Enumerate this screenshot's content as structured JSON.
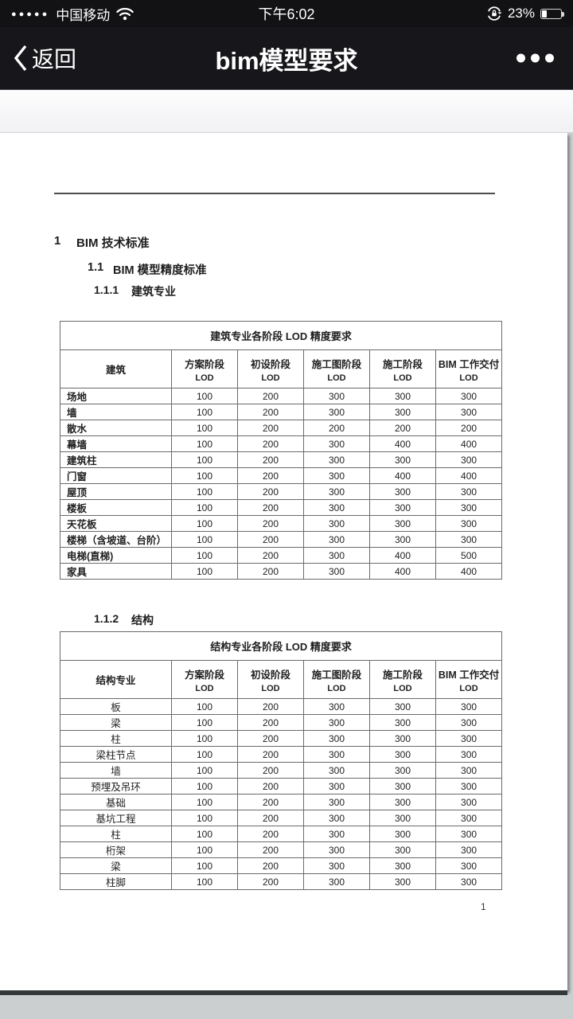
{
  "status_bar": {
    "signal_dots": "●●●●●",
    "carrier": "中国移动",
    "time": "下午6:02",
    "battery_percent": "23%"
  },
  "nav_bar": {
    "back_label": "返回",
    "title": "bim模型要求"
  },
  "page": {
    "sections": [
      {
        "num": "1",
        "text": "BIM 技术标准"
      },
      {
        "num": "1.1",
        "text": "BIM 模型精度标准"
      },
      {
        "num": "1.1.1",
        "text": "建筑专业"
      },
      {
        "num": "1.1.2",
        "text": "结构"
      }
    ],
    "page_number": "1",
    "tables": [
      {
        "title": "建筑专业各阶段 LOD 精度要求",
        "columns": [
          {
            "label": "建筑",
            "sub": ""
          },
          {
            "label": "方案阶段",
            "sub": "LOD"
          },
          {
            "label": "初设阶段",
            "sub": "LOD"
          },
          {
            "label": "施工图阶段",
            "sub": "LOD"
          },
          {
            "label": "施工阶段",
            "sub": "LOD"
          },
          {
            "label": "BIM 工作交付",
            "sub": "LOD"
          }
        ],
        "rows": [
          [
            "场地",
            "100",
            "200",
            "300",
            "300",
            "300"
          ],
          [
            "墙",
            "100",
            "200",
            "300",
            "300",
            "300"
          ],
          [
            "散水",
            "100",
            "200",
            "200",
            "200",
            "200"
          ],
          [
            "幕墙",
            "100",
            "200",
            "300",
            "400",
            "400"
          ],
          [
            "建筑柱",
            "100",
            "200",
            "300",
            "300",
            "300"
          ],
          [
            "门窗",
            "100",
            "200",
            "300",
            "400",
            "400"
          ],
          [
            "屋顶",
            "100",
            "200",
            "300",
            "300",
            "300"
          ],
          [
            "楼板",
            "100",
            "200",
            "300",
            "300",
            "300"
          ],
          [
            "天花板",
            "100",
            "200",
            "300",
            "300",
            "300"
          ],
          [
            "楼梯（含坡道、台阶）",
            "100",
            "200",
            "300",
            "300",
            "300"
          ],
          [
            "电梯(直梯)",
            "100",
            "200",
            "300",
            "400",
            "500"
          ],
          [
            "家具",
            "100",
            "200",
            "300",
            "400",
            "400"
          ]
        ]
      },
      {
        "title": "结构专业各阶段 LOD 精度要求",
        "columns": [
          {
            "label": "结构专业",
            "sub": ""
          },
          {
            "label": "方案阶段",
            "sub": "LOD"
          },
          {
            "label": "初设阶段",
            "sub": "LOD"
          },
          {
            "label": "施工图阶段",
            "sub": "LOD"
          },
          {
            "label": "施工阶段",
            "sub": "LOD"
          },
          {
            "label": "BIM 工作交付",
            "sub": "LOD"
          }
        ],
        "rows": [
          [
            "板",
            "100",
            "200",
            "300",
            "300",
            "300"
          ],
          [
            "梁",
            "100",
            "200",
            "300",
            "300",
            "300"
          ],
          [
            "柱",
            "100",
            "200",
            "300",
            "300",
            "300"
          ],
          [
            "梁柱节点",
            "100",
            "200",
            "300",
            "300",
            "300"
          ],
          [
            "墙",
            "100",
            "200",
            "300",
            "300",
            "300"
          ],
          [
            "预埋及吊环",
            "100",
            "200",
            "300",
            "300",
            "300"
          ],
          [
            "基础",
            "100",
            "200",
            "300",
            "300",
            "300"
          ],
          [
            "基坑工程",
            "100",
            "200",
            "300",
            "300",
            "300"
          ],
          [
            "柱",
            "100",
            "200",
            "300",
            "300",
            "300"
          ],
          [
            "桁架",
            "100",
            "200",
            "300",
            "300",
            "300"
          ],
          [
            "梁",
            "100",
            "200",
            "300",
            "300",
            "300"
          ],
          [
            "柱脚",
            "100",
            "200",
            "300",
            "300",
            "300"
          ]
        ]
      }
    ]
  }
}
